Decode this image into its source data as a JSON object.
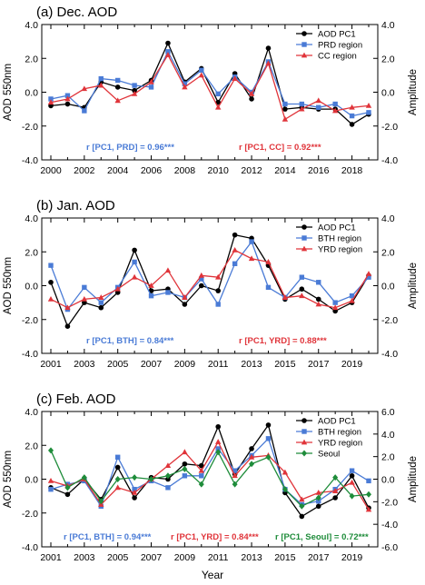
{
  "figure": {
    "xlabel": "Year"
  },
  "colors": {
    "pc1": "#000000",
    "blue": "#4a7bd6",
    "red": "#e0343a",
    "green": "#1e8c3a"
  },
  "chart_data": [
    {
      "type": "line",
      "title": "(a) Dec. AOD",
      "ylabel": "AOD 550nm",
      "y2label": "Amplitude",
      "xlim": [
        2000,
        2019
      ],
      "ylim": [
        -4,
        4
      ],
      "y2lim": [
        -4,
        4
      ],
      "yticks": [
        "-4.0",
        "-2.0",
        "0.0",
        "2.0",
        "4.0"
      ],
      "y2ticks": [
        "-4.0",
        "-2.0",
        "0.0",
        "2.0",
        "4.0"
      ],
      "xticks": [
        "2000",
        "2002",
        "2004",
        "2006",
        "2008",
        "2010",
        "2012",
        "2014",
        "2016",
        "2018"
      ],
      "legend_position": "top-right",
      "x": [
        2000,
        2001,
        2002,
        2003,
        2004,
        2005,
        2006,
        2007,
        2008,
        2009,
        2010,
        2011,
        2012,
        2013,
        2014,
        2015,
        2016,
        2017,
        2018,
        2019
      ],
      "series": [
        {
          "name": "AOD PC1",
          "color": "#000000",
          "marker": "circle",
          "values": [
            -0.8,
            -0.7,
            -0.9,
            0.6,
            0.3,
            0.1,
            0.7,
            2.9,
            0.6,
            1.4,
            -0.6,
            1.1,
            -0.4,
            2.6,
            -1.0,
            -0.9,
            -1.0,
            -1.0,
            -1.9,
            -1.3
          ]
        },
        {
          "name": "PRD region",
          "color": "#4a7bd6",
          "marker": "square",
          "values": [
            -0.4,
            -0.2,
            -1.1,
            0.8,
            0.7,
            0.4,
            0.3,
            2.4,
            0.5,
            1.3,
            -0.1,
            0.9,
            0.0,
            1.8,
            -0.7,
            -0.7,
            -0.9,
            -0.7,
            -1.4,
            -1.2
          ]
        },
        {
          "name": "CC region",
          "color": "#e0343a",
          "marker": "triangle",
          "values": [
            -0.6,
            -0.4,
            0.2,
            0.4,
            -0.5,
            -0.1,
            0.6,
            2.2,
            0.3,
            1.0,
            -0.9,
            0.8,
            -0.1,
            1.7,
            -1.6,
            -1.0,
            -0.5,
            -1.1,
            -0.9,
            -0.8
          ]
        }
      ],
      "annotations": [
        {
          "text": "r [PC1, PRD] = 0.96***",
          "color": "#4a7bd6"
        },
        {
          "text": "r [PC1, CC] = 0.92***",
          "color": "#e0343a"
        }
      ]
    },
    {
      "type": "line",
      "title": "(b) Jan. AOD",
      "ylabel": "AOD 550nm",
      "y2label": "Amplitude",
      "xlim": [
        2001,
        2020
      ],
      "ylim": [
        -4,
        4
      ],
      "y2lim": [
        -4,
        4
      ],
      "yticks": [
        "-4.0",
        "-2.0",
        "0.0",
        "2.0",
        "4.0"
      ],
      "y2ticks": [
        "-4.0",
        "-2.0",
        "0.0",
        "2.0",
        "4.0"
      ],
      "xticks": [
        "2001",
        "2003",
        "2005",
        "2007",
        "2009",
        "2011",
        "2013",
        "2015",
        "2017",
        "2019"
      ],
      "legend_position": "top-right",
      "x": [
        2001,
        2002,
        2003,
        2004,
        2005,
        2006,
        2007,
        2008,
        2009,
        2010,
        2011,
        2012,
        2013,
        2014,
        2015,
        2016,
        2017,
        2018,
        2019,
        2020
      ],
      "series": [
        {
          "name": "AOD PC1",
          "color": "#000000",
          "marker": "circle",
          "values": [
            0.2,
            -2.4,
            -1.0,
            -1.3,
            -0.4,
            2.1,
            -0.3,
            -0.2,
            -1.1,
            0.0,
            -0.3,
            3.0,
            2.8,
            1.2,
            -0.8,
            -0.2,
            -0.8,
            -1.5,
            -1.0,
            0.6
          ]
        },
        {
          "name": "BTH region",
          "color": "#4a7bd6",
          "marker": "square",
          "values": [
            1.2,
            -1.4,
            -0.1,
            -1.0,
            -0.1,
            1.4,
            -0.6,
            -0.4,
            -0.7,
            0.4,
            -1.1,
            1.3,
            2.6,
            -0.1,
            -0.7,
            0.5,
            0.2,
            -1.0,
            -0.6,
            0.5
          ]
        },
        {
          "name": "YRD region",
          "color": "#e0343a",
          "marker": "triangle",
          "values": [
            -0.8,
            -1.3,
            -0.8,
            -0.7,
            -0.2,
            0.5,
            0.0,
            0.9,
            -0.7,
            0.6,
            0.5,
            2.1,
            1.6,
            1.4,
            -0.7,
            -0.6,
            -1.1,
            -1.3,
            -0.9,
            0.7
          ]
        }
      ],
      "annotations": [
        {
          "text": "r [PC1, BTH] = 0.84***",
          "color": "#4a7bd6"
        },
        {
          "text": "r [PC1, YRD] = 0.88***",
          "color": "#e0343a"
        }
      ]
    },
    {
      "type": "line",
      "title": "(c) Feb. AOD",
      "ylabel": "AOD 550nm",
      "y2label": "Amplitude",
      "xlim": [
        2001,
        2020
      ],
      "ylim": [
        -4,
        4
      ],
      "y2lim": [
        -6,
        6
      ],
      "yticks": [
        "-4.0",
        "-2.0",
        "0.0",
        "2.0",
        "4.0"
      ],
      "y2ticks": [
        "-6.0",
        "-4.0",
        "-2.0",
        "0.0",
        "2.0",
        "4.0",
        "6.0"
      ],
      "xticks": [
        "2001",
        "2003",
        "2005",
        "2007",
        "2009",
        "2011",
        "2013",
        "2015",
        "2017",
        "2019"
      ],
      "legend_position": "top-right",
      "x": [
        2001,
        2002,
        2003,
        2004,
        2005,
        2006,
        2007,
        2008,
        2009,
        2010,
        2011,
        2012,
        2013,
        2014,
        2015,
        2016,
        2017,
        2018,
        2019,
        2020
      ],
      "series": [
        {
          "name": "AOD PC1",
          "color": "#000000",
          "marker": "circle",
          "values": [
            -0.5,
            -0.9,
            0.0,
            -1.2,
            0.7,
            -1.1,
            0.1,
            0.0,
            0.9,
            0.8,
            3.1,
            0.3,
            1.8,
            3.2,
            -0.8,
            -2.2,
            -1.6,
            -1.1,
            0.2,
            -1.7
          ]
        },
        {
          "name": "BTH region",
          "color": "#4a7bd6",
          "marker": "square",
          "values": [
            -0.6,
            -0.3,
            -0.1,
            -1.6,
            1.3,
            -0.6,
            -0.1,
            -0.5,
            0.2,
            0.2,
            1.8,
            0.5,
            1.4,
            2.4,
            -0.6,
            -1.5,
            -1.3,
            -0.6,
            0.5,
            -0.1
          ]
        },
        {
          "name": "YRD region",
          "color": "#e0343a",
          "marker": "triangle",
          "values": [
            -0.1,
            -0.4,
            0.0,
            -1.5,
            -0.5,
            -0.8,
            0.0,
            0.8,
            1.6,
            0.5,
            2.2,
            0.2,
            1.3,
            1.4,
            0.4,
            -1.2,
            -0.8,
            -0.7,
            -0.2,
            -1.8
          ]
        },
        {
          "name": "Seoul",
          "color": "#1e8c3a",
          "marker": "diamond",
          "values": [
            1.7,
            -0.5,
            0.1,
            -1.3,
            0.0,
            0.1,
            0.0,
            0.2,
            0.6,
            -0.3,
            1.6,
            -0.3,
            0.9,
            1.3,
            -0.6,
            -1.6,
            -1.1,
            0.1,
            -1.0,
            -0.9
          ]
        }
      ],
      "annotations": [
        {
          "text": "r [PC1, BTH] = 0.94***",
          "color": "#4a7bd6"
        },
        {
          "text": "r [PC1, YRD] = 0.84***",
          "color": "#e0343a"
        },
        {
          "text": "r [PC1, Seoul] = 0.72***",
          "color": "#1e8c3a"
        }
      ]
    }
  ]
}
